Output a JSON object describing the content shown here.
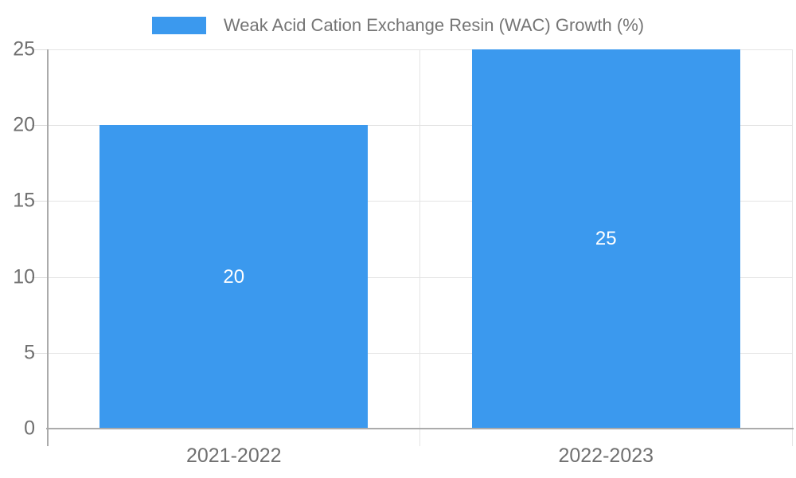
{
  "legend": {
    "label": "Weak Acid Cation Exchange Resin (WAC) Growth (%)"
  },
  "chart_data": {
    "type": "bar",
    "title": "",
    "xlabel": "",
    "ylabel": "",
    "categories": [
      "2021-2022",
      "2022-2023"
    ],
    "series": [
      {
        "name": "Weak Acid Cation Exchange Resin (WAC) Growth (%)",
        "values": [
          20,
          25
        ]
      }
    ],
    "data_labels": [
      "20",
      "25"
    ],
    "ylim": [
      0,
      25
    ],
    "yticks": [
      0,
      5,
      10,
      15,
      20,
      25
    ],
    "grid": true,
    "legend_position": "top",
    "bar_color": "#3B99EE",
    "data_label_color": "#FFFFFF",
    "axis_line_color": "#ABABAB",
    "gridline_color": "#E4E4E4",
    "tick_text_color": "#707070",
    "legend_text_color": "#757575"
  }
}
